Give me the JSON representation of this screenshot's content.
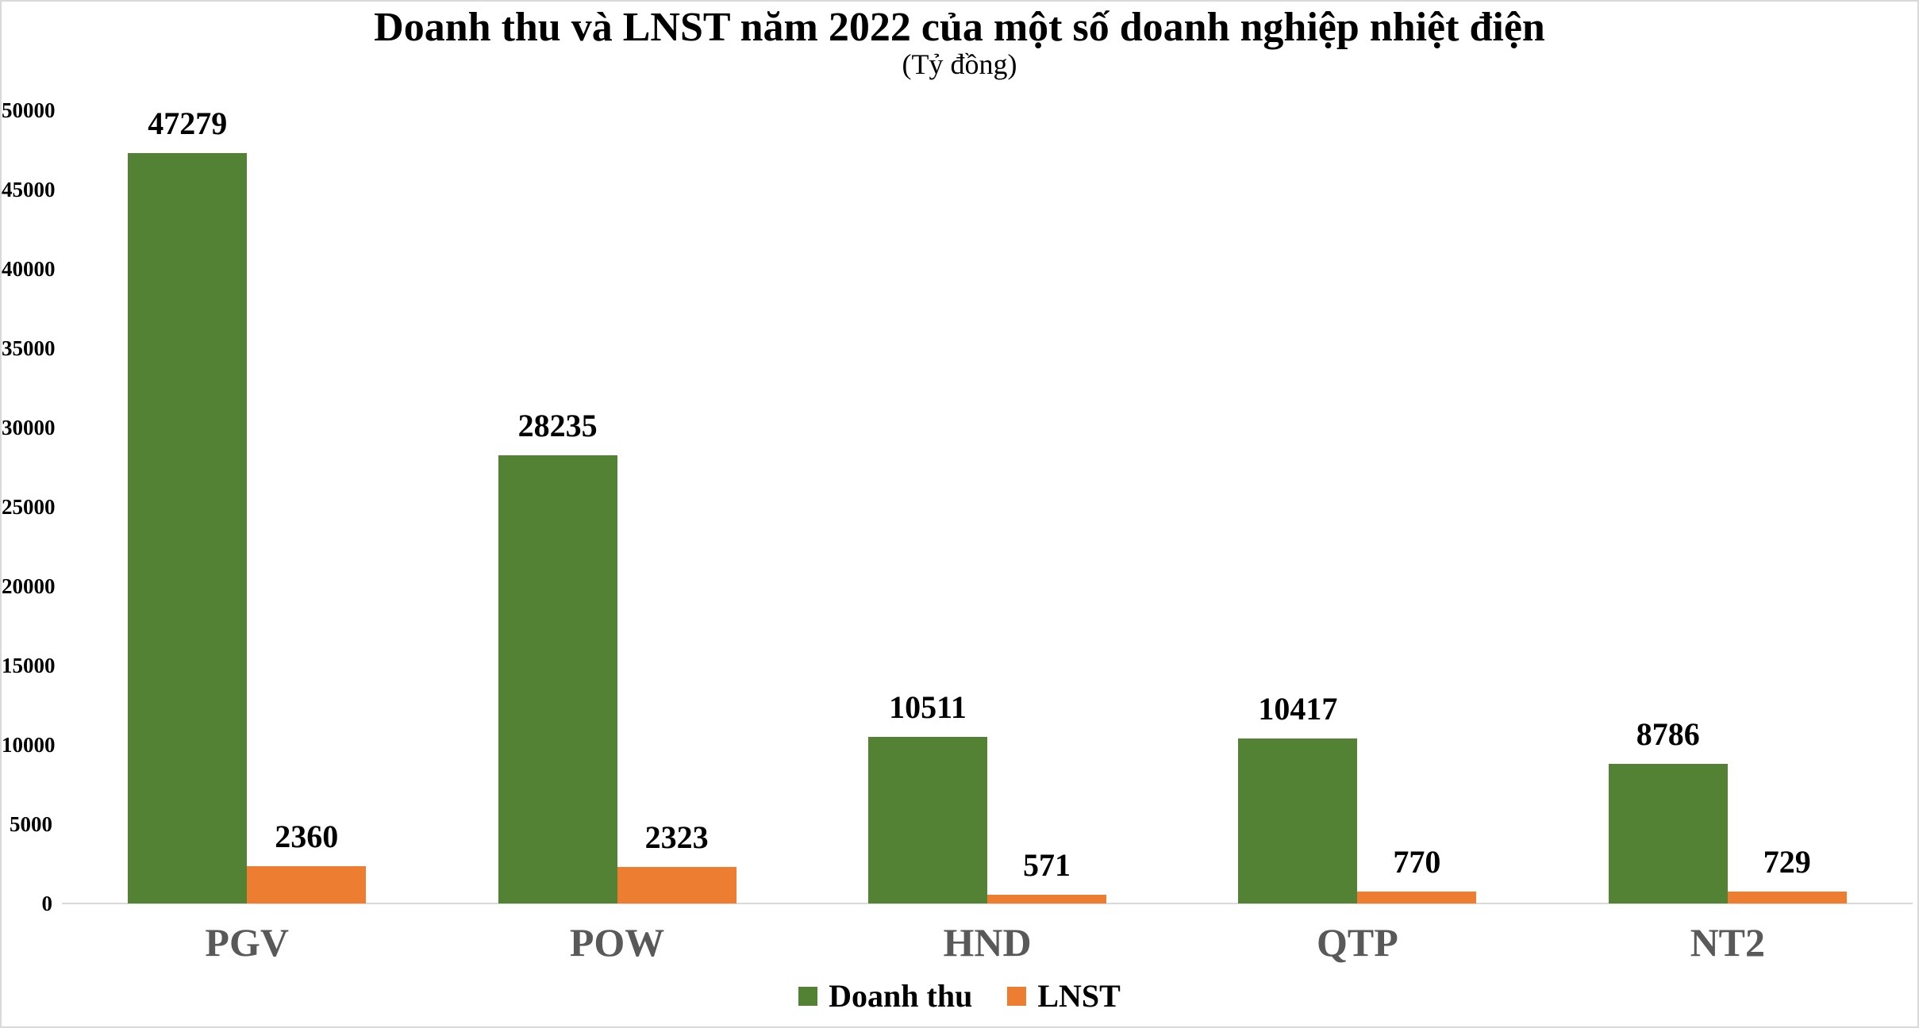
{
  "chart_data": {
    "type": "bar",
    "title": "Doanh thu và LNST năm 2022 của một số doanh nghiệp nhiệt điện",
    "subtitle": "(Tỷ đồng)",
    "categories": [
      "PGV",
      "POW",
      "HND",
      "QTP",
      "NT2"
    ],
    "series": [
      {
        "name": "Doanh thu",
        "color": "#548235",
        "values": [
          47279,
          28235,
          10511,
          10417,
          8786
        ]
      },
      {
        "name": "LNST",
        "color": "#ED7D31",
        "values": [
          2360,
          2323,
          571,
          770,
          729
        ]
      }
    ],
    "ylabel": "",
    "xlabel": "",
    "ylim": [
      0,
      50000
    ],
    "yticks": [
      0,
      5000,
      10000,
      15000,
      20000,
      25000,
      30000,
      35000,
      40000,
      45000,
      50000
    ],
    "grid": false,
    "data_labels": true,
    "legend_position": "bottom"
  },
  "colors": {
    "series_doanh_thu": "#548235",
    "series_lnst": "#ED7D31",
    "category_label": "#595959",
    "axis_line": "#d9d9d9",
    "chart_border": "#d9d9d9",
    "text": "#000000",
    "background": "#ffffff"
  }
}
